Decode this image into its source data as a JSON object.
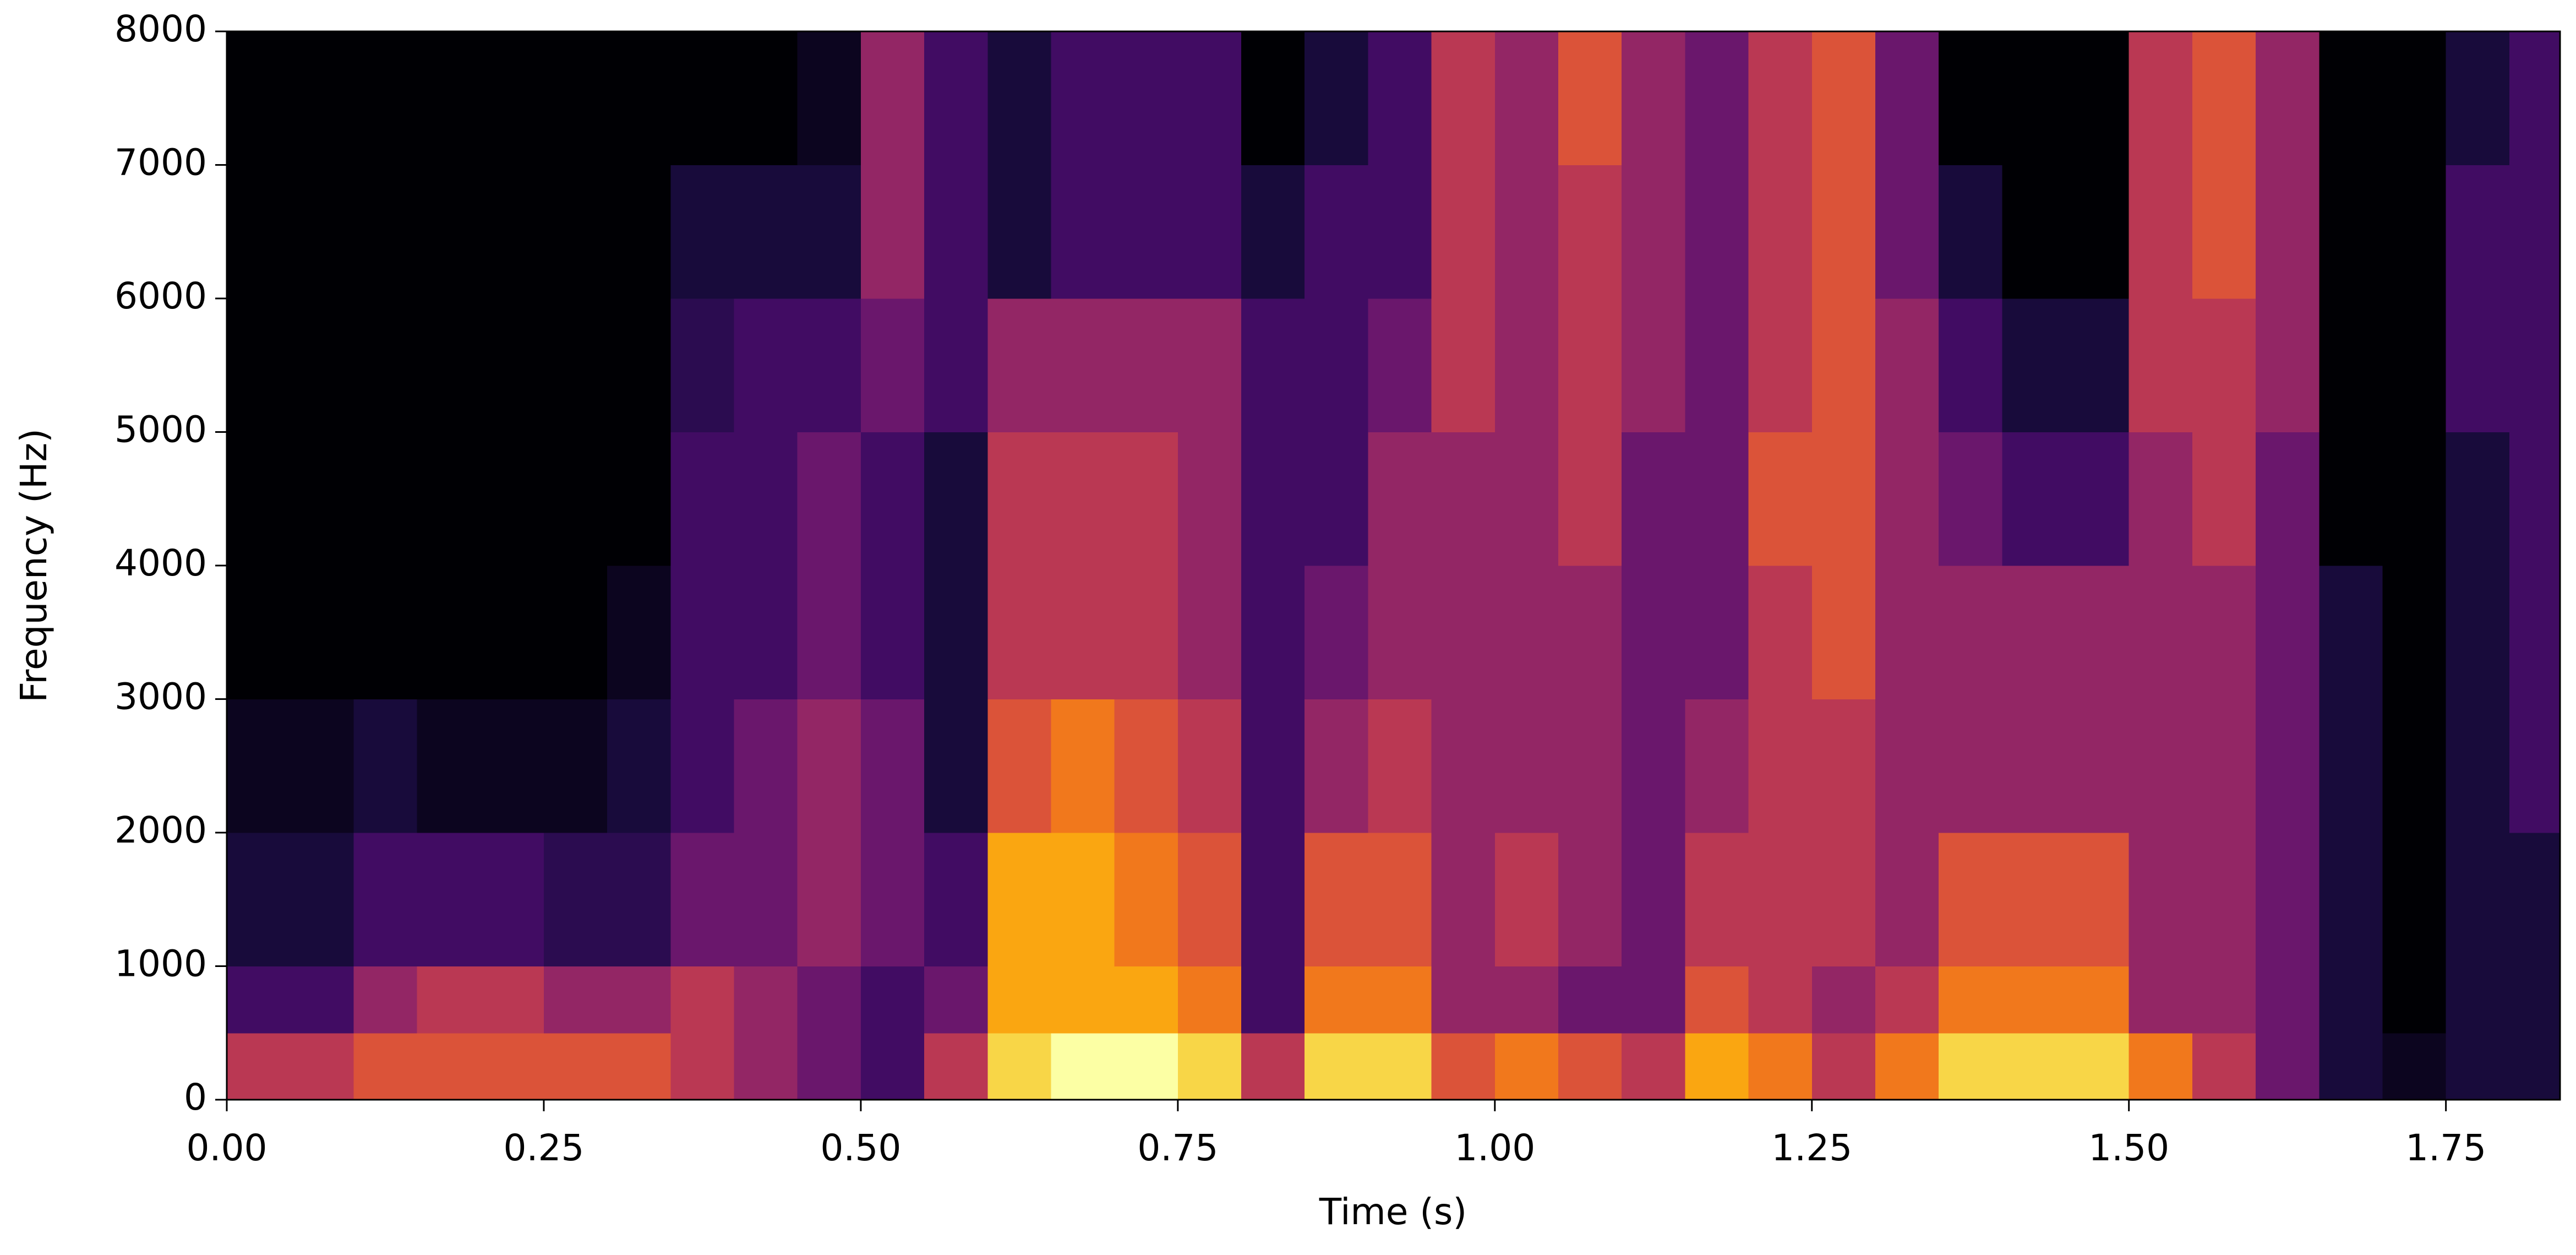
{
  "chart_data": {
    "type": "heatmap",
    "xlabel": "Time (s)",
    "ylabel": "Frequency (Hz)",
    "xlim": [
      0,
      1.84
    ],
    "ylim": [
      0,
      8000
    ],
    "xticks": [
      {
        "value": 0,
        "label": "0.00"
      },
      {
        "value": 0.25,
        "label": "0.25"
      },
      {
        "value": 0.5,
        "label": "0.50"
      },
      {
        "value": 0.75,
        "label": "0.75"
      },
      {
        "value": 1,
        "label": "1.00"
      },
      {
        "value": 1.25,
        "label": "1.25"
      },
      {
        "value": 1.5,
        "label": "1.50"
      },
      {
        "value": 1.75,
        "label": "1.75"
      }
    ],
    "yticks": [
      0,
      1000,
      2000,
      3000,
      4000,
      5000,
      6000,
      7000,
      8000
    ],
    "xbins": [
      0,
      0.05,
      0.1,
      0.15,
      0.2,
      0.25,
      0.3,
      0.35,
      0.4,
      0.45,
      0.5,
      0.55,
      0.6,
      0.65,
      0.7,
      0.75,
      0.8,
      0.85,
      0.9,
      0.95,
      1,
      1.05,
      1.1,
      1.15,
      1.2,
      1.25,
      1.3,
      1.35,
      1.4,
      1.45,
      1.5,
      1.55,
      1.6,
      1.65,
      1.7,
      1.75,
      1.8,
      1.85
    ],
    "ybins": [
      0,
      500,
      1000,
      2000,
      3000,
      4000,
      5000,
      6000,
      7000,
      8000
    ],
    "zlim": [
      0,
      10
    ],
    "colormap": [
      "#000004",
      "#1b0c41",
      "#4a0c6b",
      "#781c6d",
      "#a52c60",
      "#cf4446",
      "#ed6925",
      "#fb9b06",
      "#f7d13d",
      "#fcffa4"
    ],
    "values": [
      [
        5,
        2,
        1,
        0.5,
        0,
        0,
        0,
        0,
        0
      ],
      [
        5,
        2,
        1,
        0.5,
        0,
        0,
        0,
        0,
        0
      ],
      [
        6,
        4,
        2,
        1,
        0,
        0,
        0,
        0,
        0
      ],
      [
        6,
        5,
        2,
        0.5,
        0,
        0,
        0,
        0,
        0
      ],
      [
        6,
        5,
        2,
        0.5,
        0,
        0,
        0,
        0,
        0
      ],
      [
        6,
        4,
        1.5,
        0.5,
        0,
        0,
        0,
        0,
        0
      ],
      [
        6,
        4,
        1.5,
        1,
        0.5,
        0,
        0,
        0,
        0
      ],
      [
        5,
        5,
        3,
        2,
        2,
        2,
        1.5,
        1,
        0
      ],
      [
        4,
        4,
        3,
        3,
        2,
        2,
        2,
        1,
        0
      ],
      [
        3,
        3,
        4,
        4,
        3,
        3,
        2,
        1,
        0.5
      ],
      [
        2,
        2,
        3,
        3,
        2,
        2,
        3,
        4,
        4
      ],
      [
        5,
        3,
        2,
        1,
        1,
        1,
        2,
        2,
        2
      ],
      [
        9,
        8,
        8,
        6,
        5,
        5,
        4,
        1,
        1
      ],
      [
        10,
        8,
        8,
        7,
        5,
        5,
        4,
        2,
        2
      ],
      [
        10,
        8,
        7,
        6,
        5,
        5,
        4,
        2,
        2
      ],
      [
        9,
        7,
        6,
        5,
        4,
        4,
        4,
        2,
        2
      ],
      [
        5,
        2,
        2,
        2,
        2,
        2,
        2,
        1,
        0
      ],
      [
        9,
        7,
        6,
        4,
        3,
        2,
        2,
        2,
        1
      ],
      [
        9,
        7,
        6,
        5,
        4,
        4,
        3,
        2,
        2
      ],
      [
        6,
        4,
        4,
        4,
        4,
        4,
        5,
        5,
        5
      ],
      [
        7,
        4,
        5,
        4,
        4,
        4,
        4,
        4,
        4
      ],
      [
        6,
        3,
        4,
        4,
        4,
        5,
        5,
        5,
        6
      ],
      [
        5,
        3,
        3,
        3,
        3,
        3,
        4,
        4,
        4
      ],
      [
        8,
        6,
        5,
        4,
        3,
        3,
        3,
        3,
        3
      ],
      [
        7,
        5,
        5,
        5,
        5,
        6,
        5,
        5,
        5
      ],
      [
        5,
        4,
        5,
        5,
        6,
        6,
        6,
        6,
        6
      ],
      [
        7,
        5,
        4,
        4,
        4,
        4,
        4,
        3,
        3
      ],
      [
        9,
        7,
        6,
        4,
        4,
        3,
        2,
        1,
        0
      ],
      [
        9,
        7,
        6,
        4,
        4,
        2,
        1,
        0,
        0
      ],
      [
        9,
        7,
        6,
        4,
        4,
        2,
        1,
        0,
        0
      ],
      [
        7,
        4,
        4,
        4,
        4,
        4,
        5,
        5,
        5
      ],
      [
        5,
        4,
        4,
        4,
        4,
        5,
        5,
        6,
        6
      ],
      [
        3,
        3,
        3,
        3,
        3,
        3,
        4,
        4,
        4
      ],
      [
        1,
        1,
        1,
        1,
        1,
        0,
        0,
        0,
        0
      ],
      [
        0.5,
        0,
        0,
        0,
        0,
        0,
        0,
        0,
        0
      ],
      [
        1,
        1,
        1,
        1,
        1,
        1,
        2,
        2,
        1
      ],
      [
        1,
        1,
        1,
        2,
        2,
        2,
        2,
        2,
        2
      ]
    ]
  }
}
